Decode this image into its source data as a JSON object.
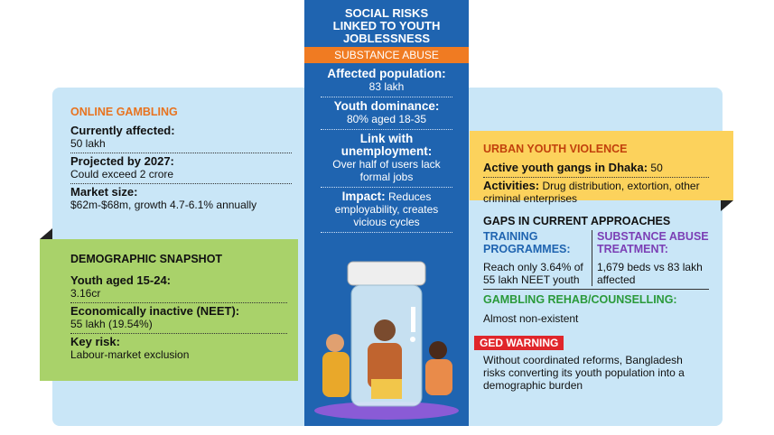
{
  "header": {
    "title": "SOCIAL RISKS LINKED TO YOUTH JOBLESSNESS",
    "tag": "SUBSTANCE ABUSE",
    "items": [
      {
        "label": "Affected population:",
        "value": "83 lakh"
      },
      {
        "label": "Youth dominance:",
        "value": "80% aged 18-35"
      },
      {
        "label": "Link with unemployment:",
        "value": "Over half of users lack formal jobs"
      },
      {
        "label": "Impact:",
        "value": "Reduces employability, creates vicious cycles"
      }
    ]
  },
  "online_gambling": {
    "title": "ONLINE GAMBLING",
    "items": [
      {
        "label": "Currently affected:",
        "value": "50 lakh"
      },
      {
        "label": "Projected by 2027:",
        "value": "Could exceed 2 crore"
      },
      {
        "label": "Market size:",
        "value": "$62m-$68m, growth 4.7-6.1% annually"
      }
    ]
  },
  "demographic": {
    "title": "DEMOGRAPHIC SNAPSHOT",
    "items": [
      {
        "label": "Youth aged 15-24:",
        "value": "3.16cr"
      },
      {
        "label": "Economically inactive (NEET):",
        "value": "55 lakh (19.54%)"
      },
      {
        "label": "Key risk:",
        "value": "Labour-market exclusion"
      }
    ]
  },
  "urban_violence": {
    "title": "URBAN YOUTH VIOLENCE",
    "items": [
      {
        "label": "Active youth gangs in Dhaka:",
        "value": "50"
      },
      {
        "label": "Activities:",
        "value": "Drug distribution, extortion, other criminal enterprises"
      }
    ]
  },
  "gaps": {
    "title": "GAPS IN CURRENT APPROACHES",
    "columns": [
      {
        "heading": "TRAINING PROGRAMMES:",
        "text": "Reach only 3.64% of 55 lakh NEET youth"
      },
      {
        "heading": "SUBSTANCE ABUSE TREATMENT:",
        "text": "1,679 beds vs 83 lakh affected"
      }
    ],
    "gambling": {
      "heading": "GAMBLING REHAB/COUNSELLING:",
      "text": "Almost non-existent"
    },
    "warning": {
      "label": "GED WARNING",
      "text": "Without coordinated reforms, Bangladesh risks converting its youth population into a demographic burden"
    }
  }
}
